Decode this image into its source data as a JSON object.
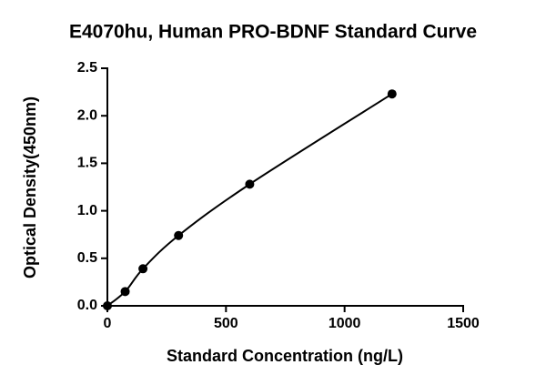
{
  "chart_data": {
    "type": "scatter",
    "title": "E4070hu, Human PRO-BDNF Standard Curve",
    "x_label": "Standard Concentration (ng/L)",
    "y_label": "Optical Density(450nm)",
    "x": [
      0,
      75,
      150,
      300,
      600,
      1200
    ],
    "values": [
      0.0,
      0.15,
      0.39,
      0.74,
      1.28,
      2.23
    ],
    "color": "#000000",
    "xlim": [
      0,
      1500
    ],
    "xticks": [
      0,
      500,
      1000,
      1500
    ],
    "ylim": [
      0,
      2.5
    ],
    "yticks": [
      {
        "value": 0,
        "label": "0.0"
      },
      0.5,
      {
        "value": 1,
        "label": "1.0"
      },
      1.5,
      {
        "value": 2,
        "label": "2.0"
      },
      2.5
    ]
  }
}
